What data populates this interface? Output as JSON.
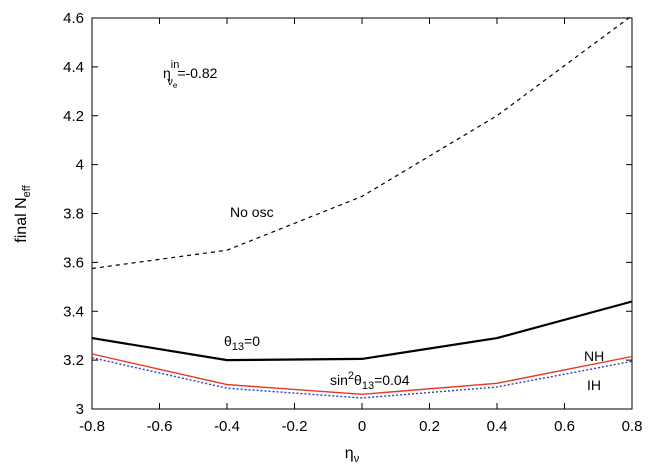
{
  "chart_data": {
    "type": "line",
    "xlabel": {
      "main": "η",
      "sub": "ν"
    },
    "ylabel": {
      "main": "final N",
      "sub": "eff"
    },
    "xlim": [
      -0.8,
      0.8
    ],
    "ylim": [
      3.0,
      4.6
    ],
    "xticks": [
      "-0.8",
      "-0.6",
      "-0.4",
      "-0.2",
      "0",
      "0.2",
      "0.4",
      "0.6",
      "0.8"
    ],
    "yticks": [
      "3",
      "3.2",
      "3.4",
      "3.6",
      "3.8",
      "4",
      "4.2",
      "4.4",
      "4.6"
    ],
    "grid": false,
    "series": [
      {
        "key": "no_osc",
        "name": "No osc",
        "color": "#000000",
        "style": "dashed",
        "x": [
          -0.8,
          -0.4,
          0,
          0.4,
          0.8
        ],
        "y": [
          3.575,
          3.65,
          3.87,
          4.2,
          4.61
        ]
      },
      {
        "key": "theta0",
        "name": "θ13=0",
        "color": "#000000",
        "style": "solid-thick",
        "x": [
          -0.8,
          -0.4,
          0,
          0.4,
          0.8
        ],
        "y": [
          3.29,
          3.2,
          3.205,
          3.29,
          3.44
        ]
      },
      {
        "key": "nh",
        "name": "NH",
        "color": "#e8371f",
        "style": "solid",
        "x": [
          -0.8,
          -0.4,
          0,
          0.4,
          0.8
        ],
        "y": [
          3.225,
          3.1,
          3.06,
          3.105,
          3.215
        ]
      },
      {
        "key": "ih",
        "name": "IH",
        "color": "#2b3fd6",
        "style": "dotted",
        "x": [
          -0.8,
          -0.4,
          0,
          0.4,
          0.8
        ],
        "y": [
          3.21,
          3.085,
          3.045,
          3.09,
          3.195
        ]
      }
    ],
    "annotations": {
      "eta_in": {
        "prefix": "η",
        "sup": "in",
        "sub": "ν",
        "subsub": "e",
        "value": "=-0.82"
      },
      "no_osc": "No osc",
      "theta0": {
        "main": "θ",
        "sub": "13",
        "rest": "=0"
      },
      "sin2": {
        "pre": "sin",
        "sup": "2",
        "main": "θ",
        "sub": "13",
        "rest": "=0.04"
      },
      "nh": "NH",
      "ih": "IH"
    }
  }
}
